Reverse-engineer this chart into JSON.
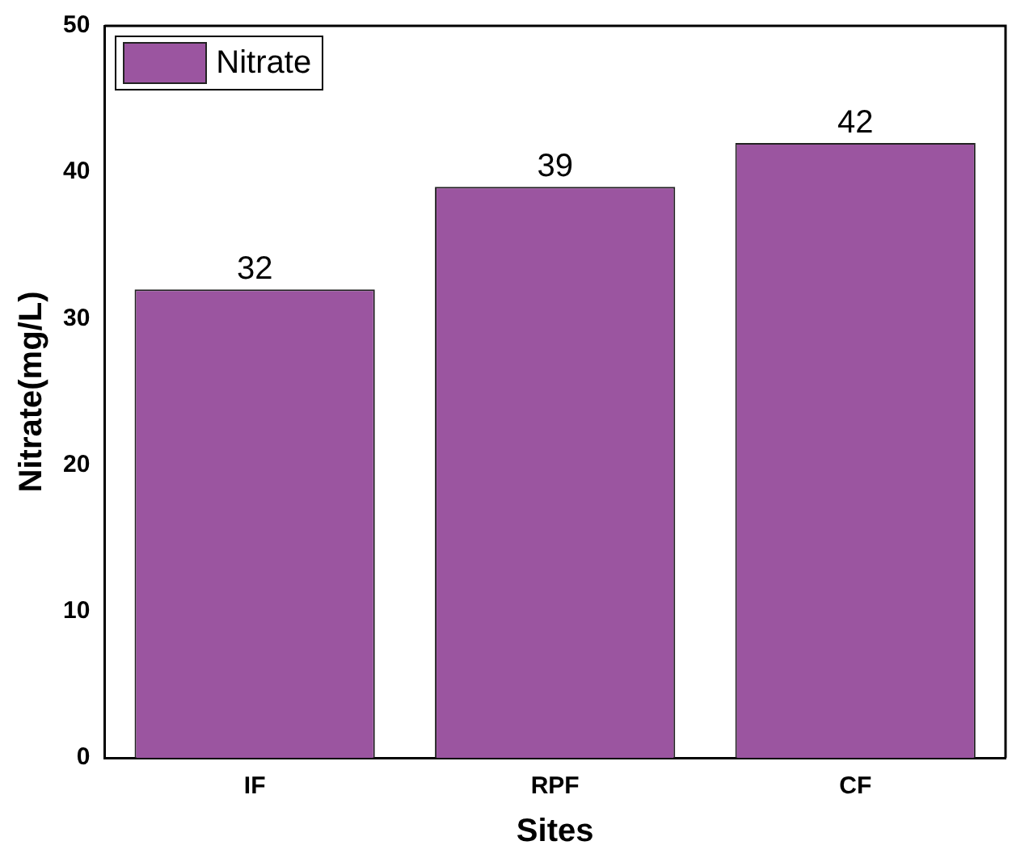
{
  "chart_data": {
    "type": "bar",
    "xlabel": "Sites",
    "ylabel": "Nitrate(mg/L)",
    "categories": [
      "IF",
      "RPF",
      "CF"
    ],
    "series": [
      {
        "name": "Nitrate",
        "color": "#9b55a0",
        "values": [
          32,
          39,
          42
        ]
      }
    ],
    "ylim": [
      0,
      50
    ],
    "yticks": [
      0,
      10,
      20,
      30,
      40,
      50
    ],
    "grid": false,
    "legend": "top left",
    "data_labels": true
  }
}
